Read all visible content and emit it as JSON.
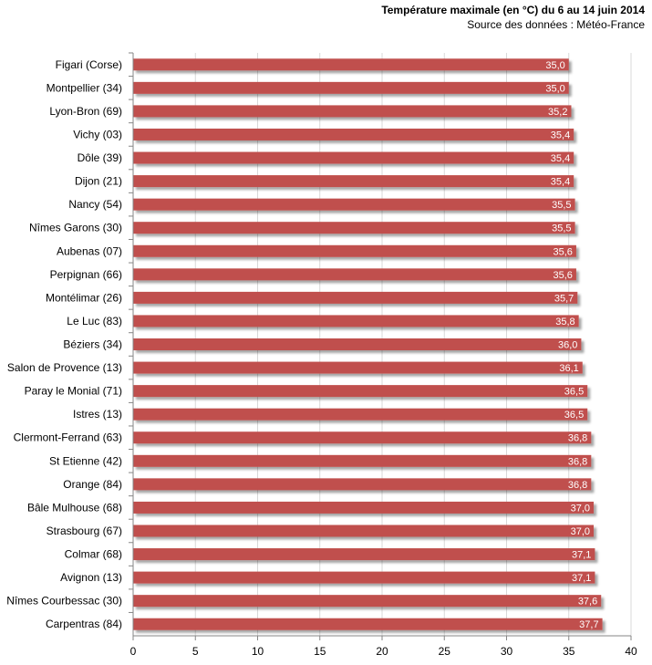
{
  "chart_data": {
    "type": "bar",
    "orientation": "horizontal",
    "title": "Température maximale (en °C) du 6 au 14 juin 2014",
    "subtitle": "Source des données : Météo-France",
    "xlabel": "",
    "ylabel": "",
    "xlim": [
      0,
      40
    ],
    "ticks": [
      "0",
      "5",
      "10",
      "15",
      "20",
      "25",
      "30",
      "35",
      "40"
    ],
    "grid": true,
    "legend": "none",
    "bar_color": "#c0504d",
    "categories": [
      "Figari (Corse)",
      "Montpellier (34)",
      "Lyon-Bron (69)",
      "Vichy (03)",
      "Dôle (39)",
      "Dijon (21)",
      "Nancy (54)",
      "Nîmes Garons (30)",
      "Aubenas (07)",
      "Perpignan (66)",
      "Montélimar (26)",
      "Le Luc (83)",
      "Béziers (34)",
      "Salon de Provence (13)",
      "Paray le Monial (71)",
      "Istres (13)",
      "Clermont-Ferrand (63)",
      "St Etienne (42)",
      "Orange (84)",
      "Bâle Mulhouse (68)",
      "Strasbourg (67)",
      "Colmar (68)",
      "Avignon (13)",
      "Nîmes Courbessac (30)",
      "Carpentras (84)"
    ],
    "values": [
      35.0,
      35.0,
      35.2,
      35.4,
      35.4,
      35.4,
      35.5,
      35.5,
      35.6,
      35.6,
      35.7,
      35.8,
      36.0,
      36.1,
      36.5,
      36.5,
      36.8,
      36.8,
      36.8,
      37.0,
      37.0,
      37.1,
      37.1,
      37.6,
      37.7
    ],
    "value_labels": [
      "35,0",
      "35,0",
      "35,2",
      "35,4",
      "35,4",
      "35,4",
      "35,5",
      "35,5",
      "35,6",
      "35,6",
      "35,7",
      "35,8",
      "36,0",
      "36,1",
      "36,5",
      "36,5",
      "36,8",
      "36,8",
      "36,8",
      "37,0",
      "37,0",
      "37,1",
      "37,1",
      "37,6",
      "37,7"
    ]
  }
}
